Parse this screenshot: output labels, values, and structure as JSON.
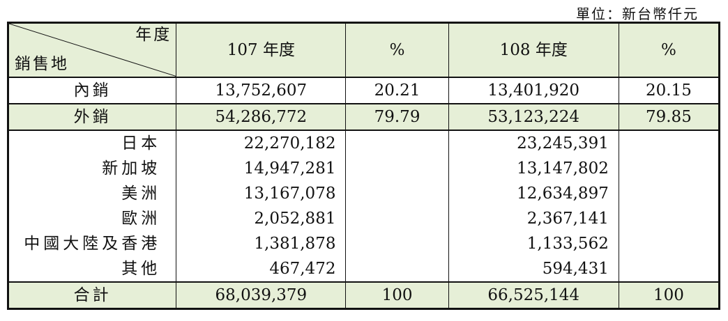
{
  "unit_note": "單位：新台幣仟元",
  "header": {
    "corner_top": "年度",
    "corner_bottom": "銷售地",
    "col_107": "107 年度",
    "col_107_pct": "%",
    "col_108": "108 年度",
    "col_108_pct": "%"
  },
  "rows": {
    "domestic": {
      "label": "內銷",
      "v107": "13,752,607",
      "p107": "20.21",
      "v108": "13,401,920",
      "p108": "20.15"
    },
    "export": {
      "label": "外銷",
      "v107": "54,286,772",
      "p107": "79.79",
      "v108": "53,123,224",
      "p108": "79.85"
    },
    "regions": [
      {
        "label": "日本",
        "v107": "22,270,182",
        "v108": "23,245,391"
      },
      {
        "label": "新加坡",
        "v107": "14,947,281",
        "v108": "13,147,802"
      },
      {
        "label": "美洲",
        "v107": "13,167,078",
        "v108": "12,634,897"
      },
      {
        "label": "歐洲",
        "v107": "2,052,881",
        "v108": "2,367,141"
      },
      {
        "label": "中國大陸及香港",
        "v107": "1,381,878",
        "v108": "1,133,562"
      },
      {
        "label": "其他",
        "v107": "467,472",
        "v108": "594,431"
      }
    ],
    "total": {
      "label": "合計",
      "v107": "68,039,379",
      "p107": "100",
      "v108": "66,525,144",
      "p108": "100"
    }
  },
  "colors": {
    "header_fill": "#e6efd7",
    "border": "#111111"
  }
}
